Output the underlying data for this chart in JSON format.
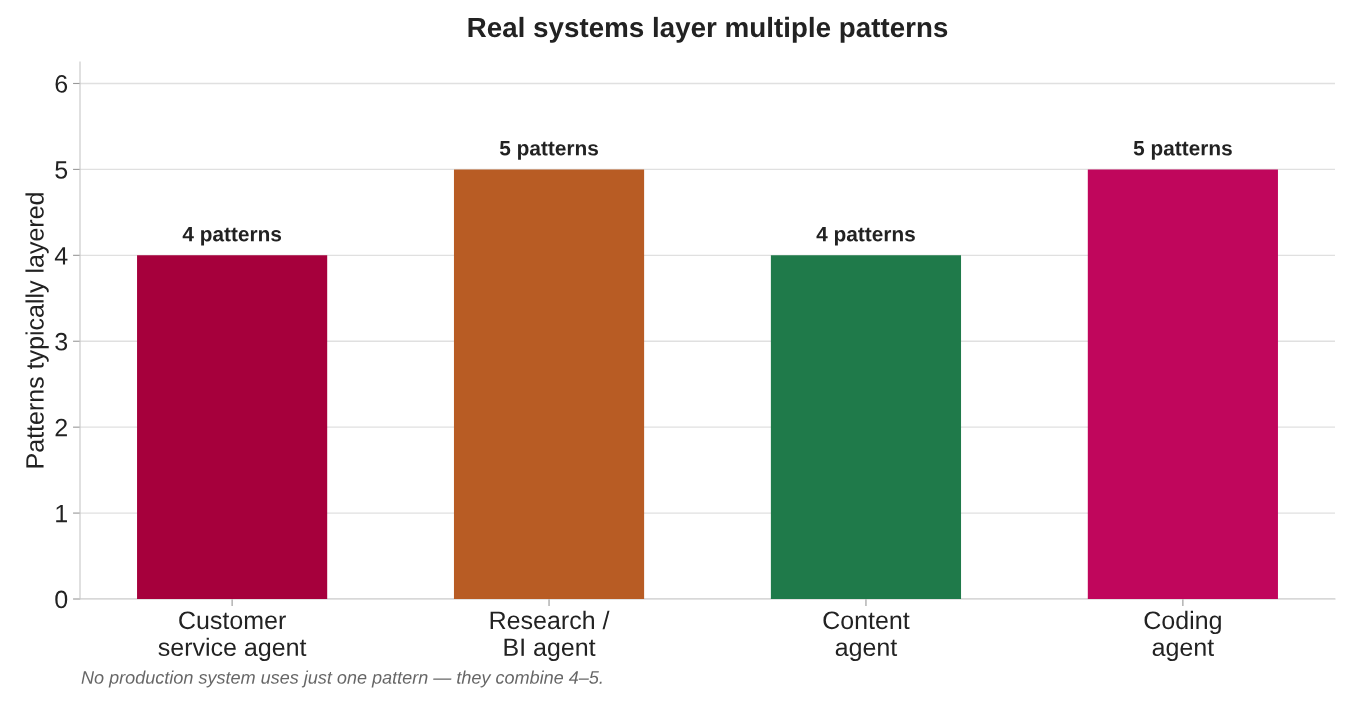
{
  "chart_data": {
    "type": "bar",
    "title": "Real systems layer multiple patterns",
    "ylabel": "Patterns typically layered",
    "categories": [
      "Customer\nservice agent",
      "Research /\nBI agent",
      "Content\nagent",
      "Coding\nagent"
    ],
    "values": [
      4,
      5,
      4,
      5
    ],
    "colors": [
      "#a6003c",
      "#b85c24",
      "#1f7a4a",
      "#c0065c"
    ],
    "value_labels": [
      "4 patterns",
      "5 patterns",
      "4 patterns",
      "5 patterns"
    ],
    "ylim": [
      0,
      6.25
    ],
    "yticks": [
      0,
      1,
      2,
      3,
      4,
      5,
      6
    ],
    "grid": "y",
    "legend": false,
    "annotations": [
      "No production system uses just one pattern — they combine 4–5."
    ]
  }
}
